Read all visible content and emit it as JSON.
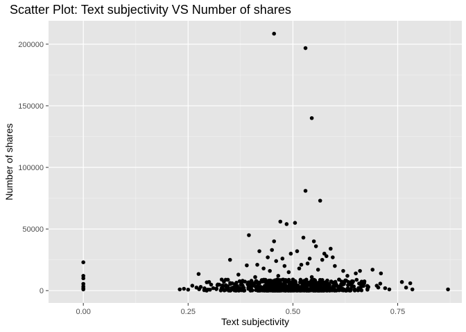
{
  "chart_data": {
    "type": "scatter",
    "title": "Scatter Plot: Text subjectivity VS Number of shares",
    "xlabel": "Text subjectivity",
    "ylabel": "Number of shares",
    "xlim": [
      -0.083,
      0.903
    ],
    "ylim": [
      -10000,
      219000
    ],
    "x_ticks": [
      0.0,
      0.25,
      0.5,
      0.75
    ],
    "x_tick_labels": [
      "0.00",
      "0.25",
      "0.50",
      "0.75"
    ],
    "y_ticks": [
      0,
      50000,
      100000,
      150000,
      200000
    ],
    "y_tick_labels": [
      "0",
      "50000",
      "100000",
      "150000",
      "200000"
    ],
    "grid": true,
    "point_color": "#000000",
    "panel_background": "#e5e5e5",
    "points": [
      {
        "x": 0.0,
        "y": 23000
      },
      {
        "x": 0.0,
        "y": 12000
      },
      {
        "x": 0.0,
        "y": 10000
      },
      {
        "x": 0.0,
        "y": 5500
      },
      {
        "x": 0.0,
        "y": 3500
      },
      {
        "x": 0.0,
        "y": 2000
      },
      {
        "x": 0.0,
        "y": 1000
      },
      {
        "x": 0.23,
        "y": 1000
      },
      {
        "x": 0.24,
        "y": 1500
      },
      {
        "x": 0.25,
        "y": 800
      },
      {
        "x": 0.26,
        "y": 4000
      },
      {
        "x": 0.27,
        "y": 2500
      },
      {
        "x": 0.275,
        "y": 13500
      },
      {
        "x": 0.28,
        "y": 3000
      },
      {
        "x": 0.29,
        "y": 1200
      },
      {
        "x": 0.3,
        "y": 7000
      },
      {
        "x": 0.31,
        "y": 2000
      },
      {
        "x": 0.32,
        "y": 4500
      },
      {
        "x": 0.33,
        "y": 9000
      },
      {
        "x": 0.34,
        "y": 3500
      },
      {
        "x": 0.35,
        "y": 25000
      },
      {
        "x": 0.355,
        "y": 6000
      },
      {
        "x": 0.36,
        "y": 2000
      },
      {
        "x": 0.37,
        "y": 13000
      },
      {
        "x": 0.38,
        "y": 8000
      },
      {
        "x": 0.39,
        "y": 20500
      },
      {
        "x": 0.395,
        "y": 45000
      },
      {
        "x": 0.4,
        "y": 5000
      },
      {
        "x": 0.41,
        "y": 11000
      },
      {
        "x": 0.415,
        "y": 21000
      },
      {
        "x": 0.42,
        "y": 32000
      },
      {
        "x": 0.43,
        "y": 18000
      },
      {
        "x": 0.435,
        "y": 7000
      },
      {
        "x": 0.44,
        "y": 27000
      },
      {
        "x": 0.445,
        "y": 16000
      },
      {
        "x": 0.45,
        "y": 33000
      },
      {
        "x": 0.455,
        "y": 40000
      },
      {
        "x": 0.46,
        "y": 24000
      },
      {
        "x": 0.465,
        "y": 12000
      },
      {
        "x": 0.47,
        "y": 56000
      },
      {
        "x": 0.475,
        "y": 26000
      },
      {
        "x": 0.48,
        "y": 20000
      },
      {
        "x": 0.485,
        "y": 54000
      },
      {
        "x": 0.49,
        "y": 15000
      },
      {
        "x": 0.495,
        "y": 30000
      },
      {
        "x": 0.5,
        "y": 9000
      },
      {
        "x": 0.505,
        "y": 55000
      },
      {
        "x": 0.51,
        "y": 32000
      },
      {
        "x": 0.515,
        "y": 18000
      },
      {
        "x": 0.52,
        "y": 21000
      },
      {
        "x": 0.525,
        "y": 43000
      },
      {
        "x": 0.53,
        "y": 81000
      },
      {
        "x": 0.535,
        "y": 22000
      },
      {
        "x": 0.54,
        "y": 26000
      },
      {
        "x": 0.545,
        "y": 11000
      },
      {
        "x": 0.55,
        "y": 40000
      },
      {
        "x": 0.555,
        "y": 36000
      },
      {
        "x": 0.56,
        "y": 17000
      },
      {
        "x": 0.565,
        "y": 73000
      },
      {
        "x": 0.57,
        "y": 25000
      },
      {
        "x": 0.575,
        "y": 30000
      },
      {
        "x": 0.58,
        "y": 28000
      },
      {
        "x": 0.59,
        "y": 34000
      },
      {
        "x": 0.595,
        "y": 27000
      },
      {
        "x": 0.6,
        "y": 20000
      },
      {
        "x": 0.61,
        "y": 9000
      },
      {
        "x": 0.62,
        "y": 16000
      },
      {
        "x": 0.63,
        "y": 12000
      },
      {
        "x": 0.64,
        "y": 7000
      },
      {
        "x": 0.65,
        "y": 14000
      },
      {
        "x": 0.66,
        "y": 16000
      },
      {
        "x": 0.67,
        "y": 6000
      },
      {
        "x": 0.68,
        "y": 3000
      },
      {
        "x": 0.69,
        "y": 17000
      },
      {
        "x": 0.7,
        "y": 4000
      },
      {
        "x": 0.71,
        "y": 14000
      },
      {
        "x": 0.72,
        "y": 2000
      },
      {
        "x": 0.73,
        "y": 1000
      },
      {
        "x": 0.76,
        "y": 7000
      },
      {
        "x": 0.77,
        "y": 2500
      },
      {
        "x": 0.78,
        "y": 6000
      },
      {
        "x": 0.785,
        "y": 1000
      },
      {
        "x": 0.87,
        "y": 1000
      },
      {
        "x": 0.455,
        "y": 208500
      },
      {
        "x": 0.53,
        "y": 196800
      },
      {
        "x": 0.545,
        "y": 140000
      }
    ],
    "dense_band": {
      "x_range": [
        0.26,
        0.74
      ],
      "y_range": [
        0,
        9000
      ],
      "count": 650,
      "seed": 7
    }
  }
}
